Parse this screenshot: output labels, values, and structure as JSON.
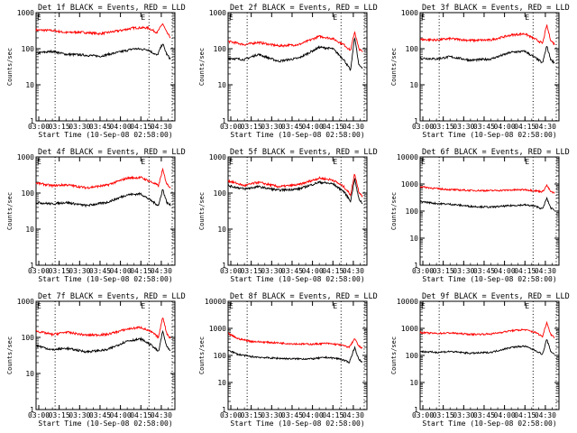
{
  "colors": {
    "events": "#000000",
    "lld": "#ff0000",
    "axis": "#000000"
  },
  "chart_data": [
    {
      "type": "line",
      "title": "Det 1f BLACK = Events, RED = LLD",
      "ylabel": "Counts/sec",
      "xlabel": "Start Time (10-Sep-08 02:58:00)",
      "x_ticks": [
        "03:00",
        "03:15",
        "03:30",
        "03:45",
        "04:00",
        "04:15",
        "04:30"
      ],
      "y_ticks": [
        "1",
        "10",
        "100",
        "1000"
      ],
      "ylim": [
        1,
        1000
      ],
      "ylog": true,
      "xlim": [
        "02:58",
        "04:40"
      ],
      "markers": [
        {
          "time": "03:12",
          "label": ""
        },
        {
          "time": "04:21",
          "label": "E"
        },
        {
          "time": "04:38",
          "label": ""
        }
      ],
      "top_left_label": "E",
      "series": [
        {
          "key": "lld",
          "x": [
            "02:58",
            "03:10",
            "03:20",
            "03:30",
            "03:45",
            "04:00",
            "04:10",
            "04:20",
            "04:27",
            "04:31",
            "04:34",
            "04:37"
          ],
          "values": [
            330,
            320,
            280,
            290,
            260,
            320,
            380,
            380,
            280,
            500,
            280,
            200
          ]
        },
        {
          "key": "events",
          "x": [
            "02:58",
            "03:10",
            "03:20",
            "03:30",
            "03:45",
            "04:00",
            "04:10",
            "04:20",
            "04:27",
            "04:31",
            "04:34",
            "04:37"
          ],
          "values": [
            75,
            85,
            70,
            68,
            62,
            82,
            100,
            95,
            65,
            140,
            70,
            50
          ]
        }
      ]
    },
    {
      "type": "line",
      "title": "Det 2f BLACK = Events, RED = LLD",
      "ylabel": "Counts/sec",
      "xlabel": "Start Time (10-Sep-08 02:58:00)",
      "x_ticks": [
        "03:00",
        "03:15",
        "03:30",
        "03:45",
        "04:00",
        "04:15",
        "04:30"
      ],
      "y_ticks": [
        "1",
        "10",
        "100",
        "1000"
      ],
      "ylim": [
        1,
        1000
      ],
      "ylog": true,
      "xlim": [
        "02:58",
        "04:40"
      ],
      "markers": [
        {
          "time": "03:12",
          "label": ""
        },
        {
          "time": "04:21",
          "label": "E"
        },
        {
          "time": "04:38",
          "label": ""
        }
      ],
      "top_left_label": "E",
      "series": [
        {
          "key": "lld",
          "x": [
            "02:58",
            "03:10",
            "03:20",
            "03:35",
            "03:50",
            "04:05",
            "04:15",
            "04:23",
            "04:28",
            "04:31",
            "04:34",
            "04:37"
          ],
          "values": [
            160,
            130,
            150,
            120,
            130,
            220,
            190,
            130,
            90,
            300,
            100,
            80
          ]
        },
        {
          "key": "events",
          "x": [
            "02:58",
            "03:10",
            "03:20",
            "03:35",
            "03:50",
            "04:05",
            "04:15",
            "04:23",
            "04:28",
            "04:31",
            "04:34",
            "04:37"
          ],
          "values": [
            55,
            50,
            70,
            45,
            55,
            110,
            100,
            50,
            25,
            220,
            35,
            30
          ]
        }
      ]
    },
    {
      "type": "line",
      "title": "Det 3f BLACK = Events, RED = LLD",
      "ylabel": "Counts/sec",
      "xlabel": "Start Time (10-Sep-08 02:58:00)",
      "x_ticks": [
        "03:00",
        "03:15",
        "03:30",
        "03:45",
        "04:00",
        "04:15",
        "04:30"
      ],
      "y_ticks": [
        "1",
        "10",
        "100",
        "1000"
      ],
      "ylim": [
        1,
        1000
      ],
      "ylog": true,
      "xlim": [
        "02:58",
        "04:40"
      ],
      "markers": [
        {
          "time": "03:12",
          "label": ""
        },
        {
          "time": "04:21",
          "label": "E"
        },
        {
          "time": "04:38",
          "label": ""
        }
      ],
      "top_left_label": "E",
      "series": [
        {
          "key": "lld",
          "x": [
            "02:58",
            "03:10",
            "03:20",
            "03:35",
            "03:50",
            "04:05",
            "04:15",
            "04:23",
            "04:28",
            "04:31",
            "04:34",
            "04:37"
          ],
          "values": [
            180,
            175,
            190,
            170,
            175,
            240,
            260,
            180,
            140,
            450,
            170,
            130
          ]
        },
        {
          "key": "events",
          "x": [
            "02:58",
            "03:10",
            "03:20",
            "03:35",
            "03:50",
            "04:05",
            "04:15",
            "04:23",
            "04:28",
            "04:31",
            "04:34",
            "04:37"
          ],
          "values": [
            55,
            52,
            60,
            48,
            52,
            80,
            85,
            55,
            40,
            120,
            50,
            40
          ]
        }
      ]
    },
    {
      "type": "line",
      "title": "Det 4f BLACK = Events, RED = LLD",
      "ylabel": "Counts/sec",
      "xlabel": "Start Time (10-Sep-08 02:58:00)",
      "x_ticks": [
        "03:00",
        "03:15",
        "03:30",
        "03:45",
        "04:00",
        "04:15",
        "04:30"
      ],
      "y_ticks": [
        "1",
        "10",
        "100",
        "1000"
      ],
      "ylim": [
        1,
        1000
      ],
      "ylog": true,
      "xlim": [
        "02:58",
        "04:40"
      ],
      "markers": [
        {
          "time": "03:12",
          "label": ""
        },
        {
          "time": "04:21",
          "label": "E"
        },
        {
          "time": "04:38",
          "label": ""
        }
      ],
      "top_left_label": "E",
      "series": [
        {
          "key": "lld",
          "x": [
            "02:58",
            "03:10",
            "03:20",
            "03:35",
            "03:50",
            "04:05",
            "04:15",
            "04:23",
            "04:28",
            "04:31",
            "04:34",
            "04:37"
          ],
          "values": [
            190,
            160,
            170,
            140,
            165,
            260,
            270,
            200,
            160,
            450,
            180,
            140
          ]
        },
        {
          "key": "events",
          "x": [
            "02:58",
            "03:10",
            "03:20",
            "03:35",
            "03:50",
            "04:05",
            "04:15",
            "04:23",
            "04:28",
            "04:31",
            "04:34",
            "04:37"
          ],
          "values": [
            55,
            50,
            55,
            45,
            55,
            90,
            95,
            60,
            45,
            130,
            55,
            45
          ]
        }
      ]
    },
    {
      "type": "line",
      "title": "Det 5f BLACK = Events, RED = LLD",
      "ylabel": "Counts/sec",
      "xlabel": "Start Time (10-Sep-08 02:58:00)",
      "x_ticks": [
        "03:00",
        "03:15",
        "03:30",
        "03:45",
        "04:00",
        "04:15",
        "04:30"
      ],
      "y_ticks": [
        "1",
        "10",
        "100",
        "1000"
      ],
      "ylim": [
        1,
        1000
      ],
      "ylog": true,
      "xlim": [
        "02:58",
        "04:40"
      ],
      "markers": [
        {
          "time": "03:12",
          "label": ""
        },
        {
          "time": "04:21",
          "label": "E"
        },
        {
          "time": "04:38",
          "label": ""
        }
      ],
      "top_left_label": "E",
      "series": [
        {
          "key": "lld",
          "x": [
            "02:58",
            "03:10",
            "03:20",
            "03:35",
            "03:50",
            "04:05",
            "04:15",
            "04:23",
            "04:28",
            "04:31",
            "04:34",
            "04:37"
          ],
          "values": [
            220,
            160,
            200,
            150,
            170,
            260,
            230,
            150,
            90,
            350,
            110,
            80
          ]
        },
        {
          "key": "events",
          "x": [
            "02:58",
            "03:10",
            "03:20",
            "03:35",
            "03:50",
            "04:05",
            "04:15",
            "04:23",
            "04:28",
            "04:31",
            "04:34",
            "04:37"
          ],
          "values": [
            160,
            130,
            150,
            120,
            130,
            200,
            180,
            110,
            60,
            250,
            70,
            50
          ]
        }
      ]
    },
    {
      "type": "line",
      "title": "Det 6f BLACK = Events, RED = LLD",
      "ylabel": "Counts/sec",
      "xlabel": "Start Time (10-Sep-08 02:58:00)",
      "x_ticks": [
        "03:00",
        "03:15",
        "03:30",
        "03:45",
        "04:00",
        "04:15",
        "04:30"
      ],
      "y_ticks": [
        "1",
        "10",
        "100",
        "1000",
        "10000"
      ],
      "ylim": [
        1,
        10000
      ],
      "ylog": true,
      "xlim": [
        "02:58",
        "04:40"
      ],
      "markers": [
        {
          "time": "03:12",
          "label": ""
        },
        {
          "time": "04:21",
          "label": "E"
        },
        {
          "time": "04:38",
          "label": ""
        }
      ],
      "top_left_label": "E",
      "series": [
        {
          "key": "lld",
          "x": [
            "02:58",
            "03:10",
            "03:20",
            "03:35",
            "03:50",
            "04:05",
            "04:15",
            "04:23",
            "04:28",
            "04:31",
            "04:34",
            "04:37"
          ],
          "values": [
            800,
            680,
            620,
            580,
            570,
            600,
            620,
            560,
            520,
            900,
            520,
            460
          ]
        },
        {
          "key": "events",
          "x": [
            "02:58",
            "03:10",
            "03:20",
            "03:35",
            "03:50",
            "04:05",
            "04:15",
            "04:23",
            "04:28",
            "04:31",
            "04:34",
            "04:37"
          ],
          "values": [
            230,
            190,
            180,
            150,
            140,
            160,
            170,
            150,
            120,
            300,
            130,
            110
          ]
        }
      ]
    },
    {
      "type": "line",
      "title": "Det 7f BLACK = Events, RED = LLD",
      "ylabel": "Counts/sec",
      "xlabel": "Start Time (10-Sep-08 02:58:00)",
      "x_ticks": [
        "03:00",
        "03:15",
        "03:30",
        "03:45",
        "04:00",
        "04:15",
        "04:30"
      ],
      "y_ticks": [
        "1",
        "10",
        "100",
        "1000"
      ],
      "ylim": [
        1,
        1000
      ],
      "ylog": true,
      "xlim": [
        "02:58",
        "04:40"
      ],
      "markers": [
        {
          "time": "03:12",
          "label": ""
        },
        {
          "time": "04:21",
          "label": "E"
        },
        {
          "time": "04:38",
          "label": ""
        }
      ],
      "top_left_label": "E",
      "series": [
        {
          "key": "lld",
          "x": [
            "02:58",
            "03:10",
            "03:20",
            "03:35",
            "03:50",
            "04:05",
            "04:15",
            "04:23",
            "04:28",
            "04:31",
            "04:34",
            "04:37"
          ],
          "values": [
            150,
            120,
            140,
            115,
            120,
            170,
            190,
            140,
            100,
            380,
            130,
            90
          ]
        },
        {
          "key": "events",
          "x": [
            "02:58",
            "03:10",
            "03:20",
            "03:35",
            "03:50",
            "04:05",
            "04:15",
            "04:23",
            "04:28",
            "04:31",
            "04:34",
            "04:37"
          ],
          "values": [
            60,
            45,
            50,
            40,
            45,
            80,
            90,
            60,
            40,
            150,
            55,
            40
          ]
        }
      ]
    },
    {
      "type": "line",
      "title": "Det 8f BLACK = Events, RED = LLD",
      "ylabel": "Counts/sec",
      "xlabel": "Start Time (10-Sep-08 02:58:00)",
      "x_ticks": [
        "03:00",
        "03:15",
        "03:30",
        "03:45",
        "04:00",
        "04:15",
        "04:30"
      ],
      "y_ticks": [
        "1",
        "10",
        "100",
        "1000",
        "10000"
      ],
      "ylim": [
        1,
        10000
      ],
      "ylog": true,
      "xlim": [
        "02:58",
        "04:40"
      ],
      "markers": [
        {
          "time": "03:12",
          "label": ""
        },
        {
          "time": "04:21",
          "label": "E"
        },
        {
          "time": "04:38",
          "label": ""
        }
      ],
      "top_left_label": "E",
      "series": [
        {
          "key": "lld",
          "x": [
            "02:58",
            "03:05",
            "03:15",
            "03:30",
            "03:45",
            "04:00",
            "04:10",
            "04:20",
            "04:27",
            "04:31",
            "04:34",
            "04:37"
          ],
          "values": [
            650,
            420,
            330,
            300,
            270,
            260,
            280,
            250,
            200,
            420,
            220,
            180
          ]
        },
        {
          "key": "events",
          "x": [
            "02:58",
            "03:05",
            "03:15",
            "03:30",
            "03:45",
            "04:00",
            "04:10",
            "04:20",
            "04:27",
            "04:31",
            "04:34",
            "04:37"
          ],
          "values": [
            160,
            110,
            90,
            80,
            75,
            75,
            85,
            75,
            55,
            200,
            70,
            55
          ]
        }
      ]
    },
    {
      "type": "line",
      "title": "Det 9f BLACK = Events, RED = LLD",
      "ylabel": "Counts/sec",
      "xlabel": "Start Time (10-Sep-08 02:58:00)",
      "x_ticks": [
        "03:00",
        "03:15",
        "03:30",
        "03:45",
        "04:00",
        "04:15",
        "04:30"
      ],
      "y_ticks": [
        "1",
        "10",
        "100",
        "1000",
        "10000"
      ],
      "ylim": [
        1,
        10000
      ],
      "ylog": true,
      "xlim": [
        "02:58",
        "04:40"
      ],
      "markers": [
        {
          "time": "03:12",
          "label": ""
        },
        {
          "time": "04:21",
          "label": "E"
        },
        {
          "time": "04:38",
          "label": ""
        }
      ],
      "top_left_label": "E",
      "series": [
        {
          "key": "lld",
          "x": [
            "02:58",
            "03:10",
            "03:20",
            "03:35",
            "03:50",
            "04:05",
            "04:15",
            "04:23",
            "04:28",
            "04:31",
            "04:34",
            "04:37"
          ],
          "values": [
            700,
            650,
            680,
            600,
            620,
            820,
            900,
            700,
            500,
            1700,
            600,
            450
          ]
        },
        {
          "key": "events",
          "x": [
            "02:58",
            "03:10",
            "03:20",
            "03:35",
            "03:50",
            "04:05",
            "04:15",
            "04:23",
            "04:28",
            "04:31",
            "04:34",
            "04:37"
          ],
          "values": [
            140,
            130,
            140,
            120,
            130,
            200,
            220,
            150,
            110,
            400,
            140,
            110
          ]
        }
      ]
    }
  ]
}
